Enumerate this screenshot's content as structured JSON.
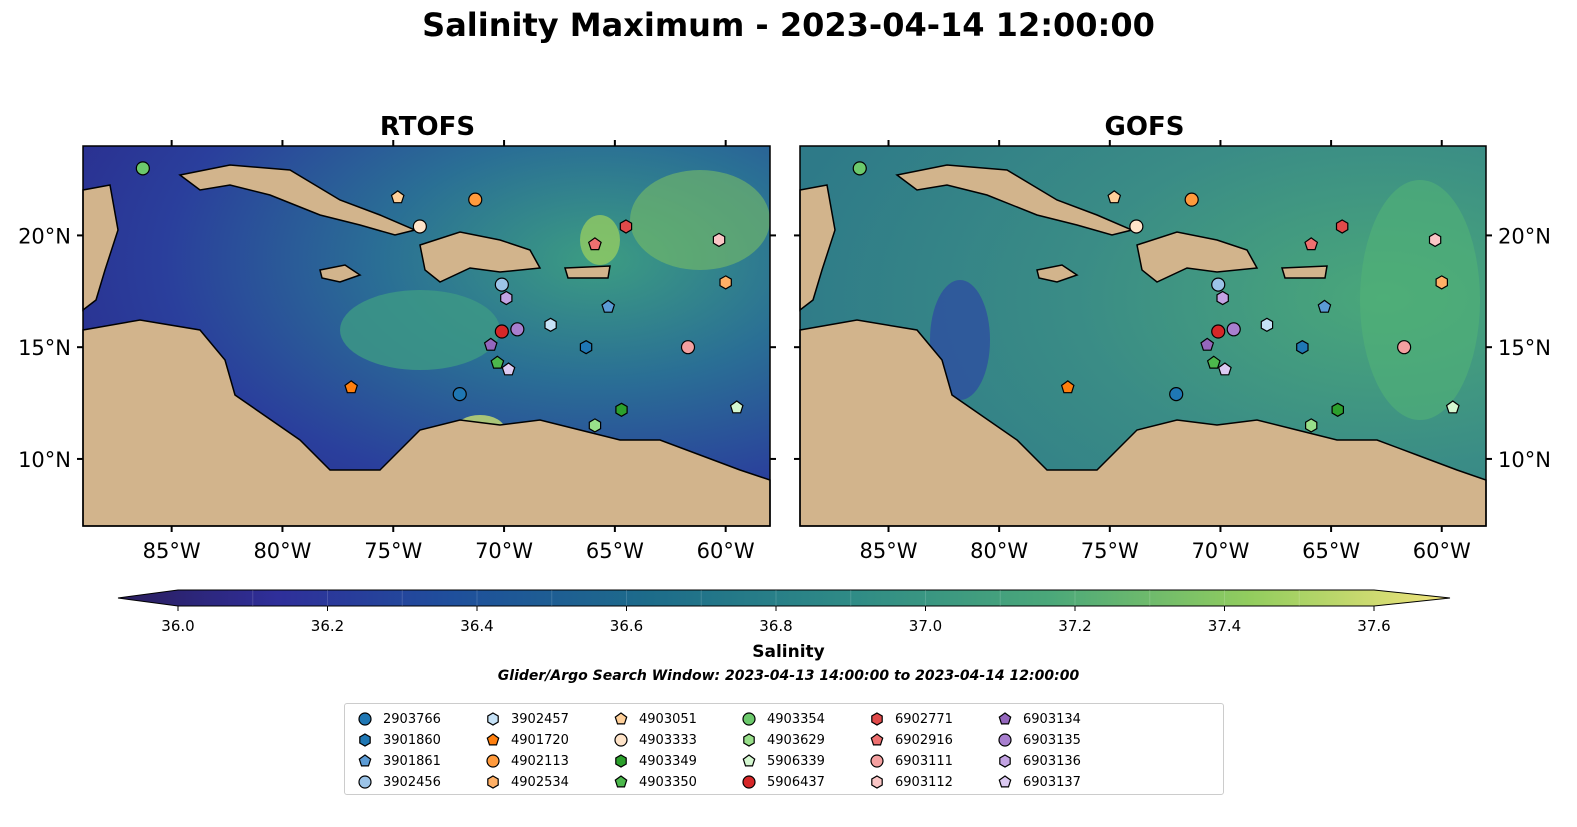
{
  "title": "Salinity Maximum - 2023-04-14 12:00:00",
  "panels": [
    {
      "title": "RTOFS"
    },
    {
      "title": "GOFS"
    }
  ],
  "axes": {
    "lat_ticks": [
      "20°N",
      "15°N",
      "10°N"
    ],
    "lon_ticks": [
      "85°W",
      "80°W",
      "75°W",
      "70°W",
      "65°W",
      "60°W"
    ],
    "extent": {
      "lon": [
        -89,
        -58
      ],
      "lat": [
        7,
        24
      ]
    }
  },
  "colorbar": {
    "label": "Salinity",
    "ticks": [
      "36.0",
      "36.2",
      "36.4",
      "36.6",
      "36.8",
      "37.0",
      "37.2",
      "37.4",
      "37.6"
    ],
    "range": [
      36.0,
      37.6
    ],
    "levels": 16,
    "colormap": "haline",
    "extend": "both"
  },
  "search_window": "Glider/Argo Search Window: 2023-04-13 14:00:00 to 2023-04-14 12:00:00",
  "legend": [
    {
      "id": "2903766",
      "marker": "circle",
      "color": "#1f77b4",
      "lon": -72.0,
      "lat": 12.9
    },
    {
      "id": "3901860",
      "marker": "hexagon",
      "color": "#1f77b4",
      "lon": -66.3,
      "lat": 15.0
    },
    {
      "id": "3901861",
      "marker": "pentagon",
      "color": "#5b9bd5",
      "lon": -65.3,
      "lat": 16.8
    },
    {
      "id": "3902456",
      "marker": "circle",
      "color": "#9cc4e8",
      "lon": -70.1,
      "lat": 17.8
    },
    {
      "id": "3902457",
      "marker": "hexagon",
      "color": "#c6e2f7",
      "lon": -67.9,
      "lat": 16.0
    },
    {
      "id": "4901720",
      "marker": "pentagon",
      "color": "#ff7f0e",
      "lon": -76.9,
      "lat": 13.2
    },
    {
      "id": "4902113",
      "marker": "circle",
      "color": "#ff9a3c",
      "lon": -71.3,
      "lat": 21.6
    },
    {
      "id": "4902534",
      "marker": "hexagon",
      "color": "#ffb066",
      "lon": -60.0,
      "lat": 17.9
    },
    {
      "id": "4903051",
      "marker": "pentagon",
      "color": "#ffd09a",
      "lon": -74.8,
      "lat": 21.7
    },
    {
      "id": "4903333",
      "marker": "circle",
      "color": "#ffe4c9",
      "lon": -73.8,
      "lat": 20.4
    },
    {
      "id": "4903349",
      "marker": "hexagon",
      "color": "#2ca02c",
      "lon": -64.7,
      "lat": 12.2
    },
    {
      "id": "4903350",
      "marker": "pentagon",
      "color": "#4cb84c",
      "lon": -70.3,
      "lat": 14.3
    },
    {
      "id": "4903354",
      "marker": "circle",
      "color": "#6cc96c",
      "lon": -86.3,
      "lat": 23.0
    },
    {
      "id": "4903629",
      "marker": "hexagon",
      "color": "#98df8a",
      "lon": -65.9,
      "lat": 11.5
    },
    {
      "id": "5906339",
      "marker": "pentagon",
      "color": "#d4f7d0",
      "lon": -59.5,
      "lat": 12.3
    },
    {
      "id": "5906437",
      "marker": "circle",
      "color": "#d62728",
      "lon": -70.1,
      "lat": 15.7
    },
    {
      "id": "6902771",
      "marker": "hexagon",
      "color": "#e04a4a",
      "lon": -64.5,
      "lat": 20.4
    },
    {
      "id": "6902916",
      "marker": "pentagon",
      "color": "#ee7070",
      "lon": -65.9,
      "lat": 19.6
    },
    {
      "id": "6903111",
      "marker": "circle",
      "color": "#f4a0a0",
      "lon": -61.7,
      "lat": 15.0
    },
    {
      "id": "6903112",
      "marker": "hexagon",
      "color": "#fac6c6",
      "lon": -60.3,
      "lat": 19.8
    },
    {
      "id": "6903134",
      "marker": "pentagon",
      "color": "#9467bd",
      "lon": -70.6,
      "lat": 15.1
    },
    {
      "id": "6903135",
      "marker": "circle",
      "color": "#a87fcf",
      "lon": -69.4,
      "lat": 15.8
    },
    {
      "id": "6903136",
      "marker": "hexagon",
      "color": "#c3a3e3",
      "lon": -69.9,
      "lat": 17.2
    },
    {
      "id": "6903137",
      "marker": "pentagon",
      "color": "#dccaf2",
      "lon": -69.8,
      "lat": 14.0
    }
  ]
}
